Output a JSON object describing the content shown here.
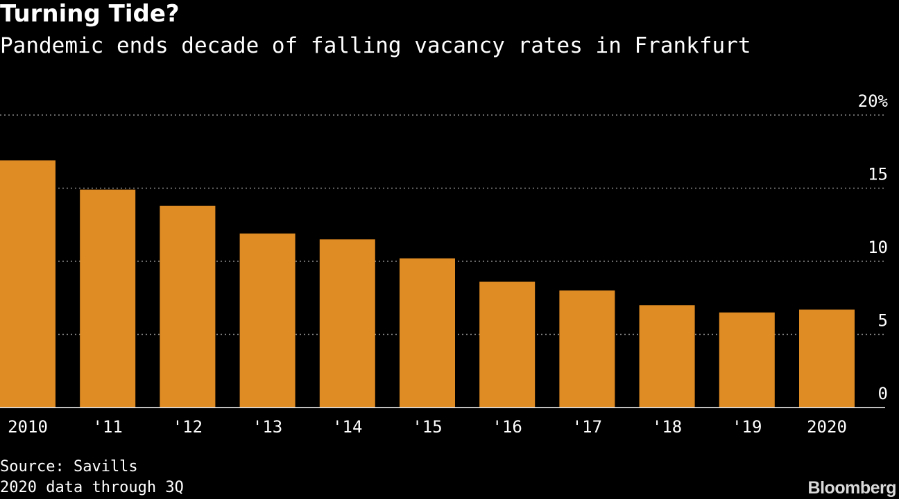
{
  "header": {
    "title": "Turning Tide?",
    "subtitle": "Pandemic ends decade of falling vacancy rates in Frankfurt"
  },
  "footer": {
    "source": "Source: Savills",
    "note": "2020 data through 3Q",
    "brand": "Bloomberg"
  },
  "colors": {
    "background": "#000000",
    "bar": "#e08c24",
    "grid": "#8c8c8c",
    "text": "#ffffff"
  },
  "chart_data": {
    "type": "bar",
    "title": "Turning Tide?",
    "subtitle": "Pandemic ends decade of falling vacancy rates in Frankfurt",
    "xlabel": "",
    "ylabel": "",
    "categories": [
      "2010",
      "'11",
      "'12",
      "'13",
      "'14",
      "'15",
      "'16",
      "'17",
      "'18",
      "'19",
      "2020"
    ],
    "values": [
      16.9,
      14.9,
      13.8,
      11.9,
      11.5,
      10.2,
      8.6,
      8.0,
      7.0,
      6.5,
      6.7
    ],
    "ylim": [
      0,
      20
    ],
    "yticks": [
      0,
      5,
      10,
      15,
      20
    ],
    "ytick_labels": [
      "0",
      "5",
      "10",
      "15",
      "20%"
    ],
    "grid": true,
    "yaxis_position": "right"
  }
}
